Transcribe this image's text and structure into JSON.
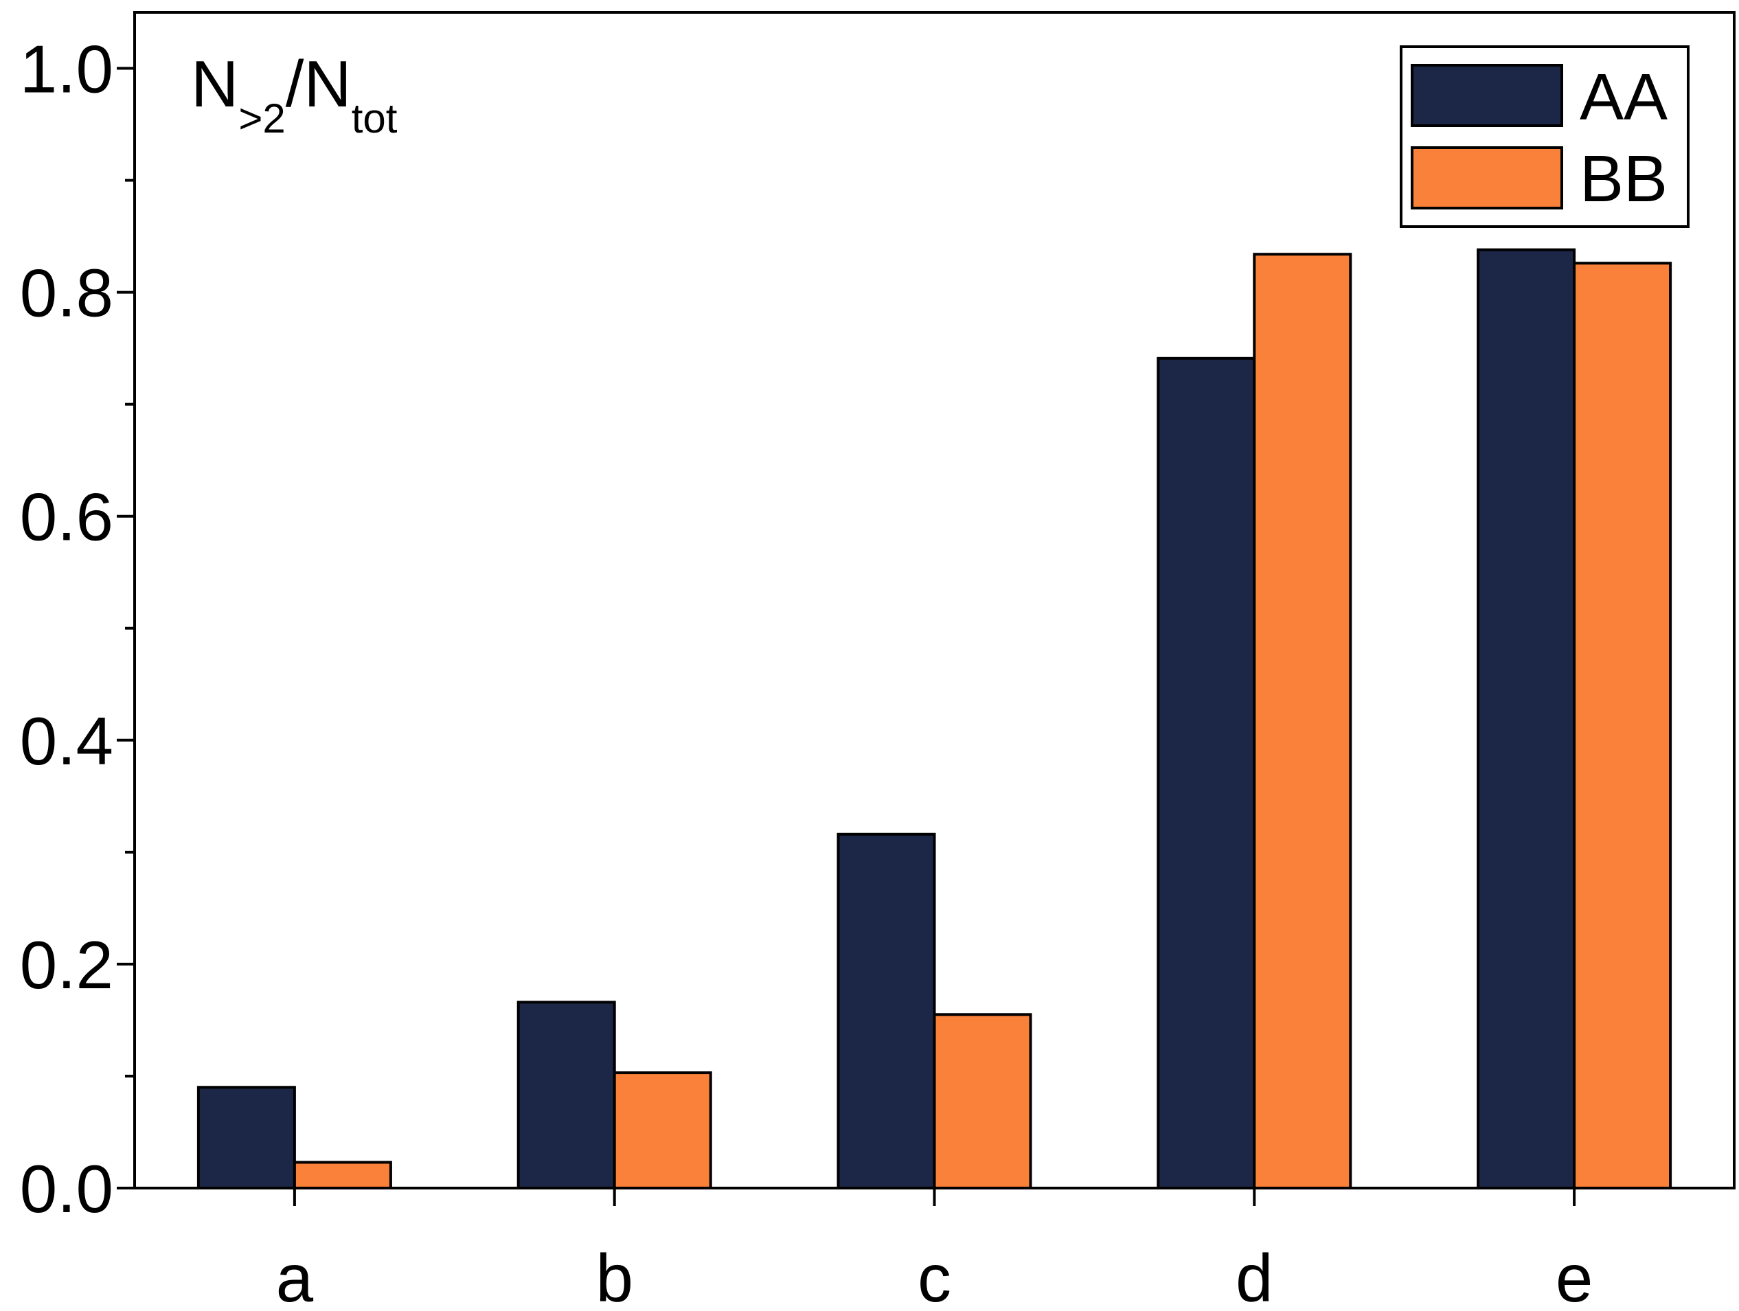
{
  "chart_data": {
    "type": "bar",
    "categories": [
      "a",
      "b",
      "c",
      "d",
      "e"
    ],
    "series": [
      {
        "name": "AA",
        "color": "#1c2647",
        "values": [
          0.09,
          0.166,
          0.316,
          0.741,
          0.838
        ]
      },
      {
        "name": "BB",
        "color": "#f9813a",
        "values": [
          0.023,
          0.103,
          0.155,
          0.834,
          0.826
        ]
      }
    ],
    "ylabel": {
      "main1": "N",
      "sub1": ">2",
      "main2": "/N",
      "sub2": "tot"
    },
    "ylim": [
      0,
      1.05
    ],
    "yticks": [
      0.0,
      0.2,
      0.4,
      0.6,
      0.8,
      1.0
    ],
    "ytick_labels": [
      "0.0",
      "0.2",
      "0.4",
      "0.6",
      "0.8",
      "1.0"
    ],
    "yminor_ticks": [
      0.1,
      0.3,
      0.5,
      0.7,
      0.9
    ],
    "legend_position": "top-right",
    "grid": false
  }
}
